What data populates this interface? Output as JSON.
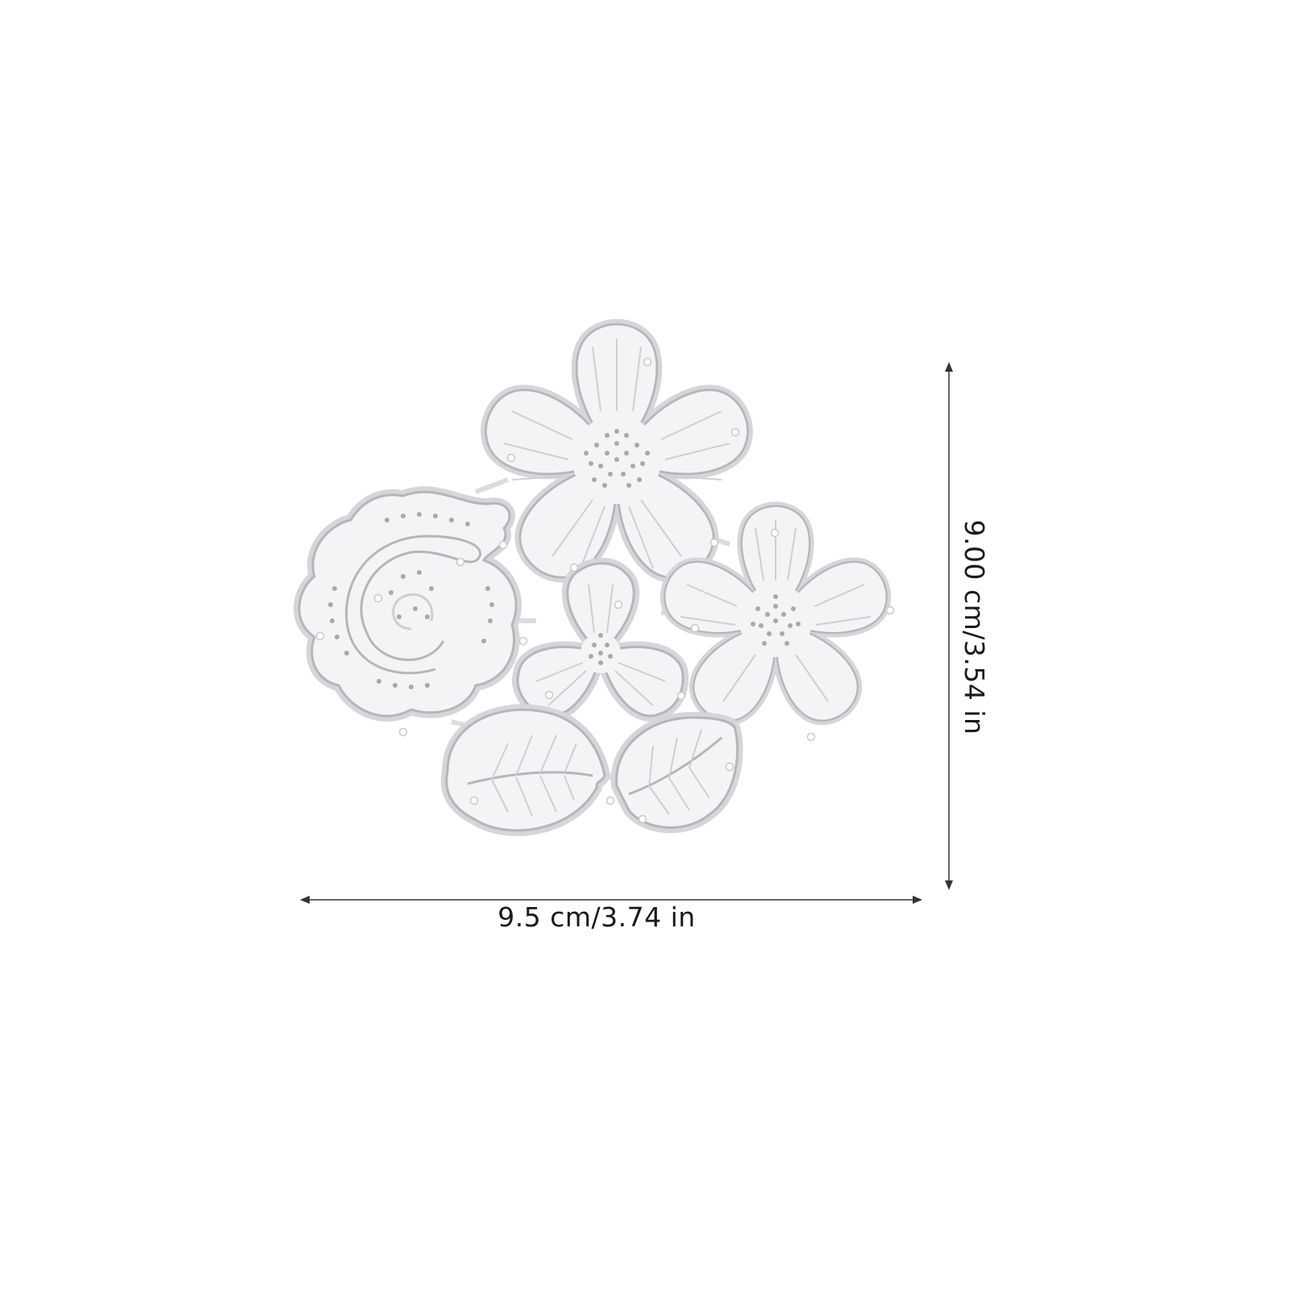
{
  "product": {
    "description_items": [
      "flower-die-spiral-rose",
      "flower-die-five-petal-large",
      "flower-die-three-petal",
      "flower-die-five-petal-right",
      "leaf-die-left",
      "leaf-die-right"
    ]
  },
  "dimensions": {
    "width_label": "9.5 cm/3.74 in",
    "height_label": "9.00 cm/3.54 in"
  },
  "colors": {
    "background": "#ffffff",
    "die_fill": "#f4f4f6",
    "die_outline": "#b9b9bd",
    "die_edge": "#d9d9dd",
    "emboss_line": "#c9c9cd",
    "dot": "#a8a8ad",
    "dimension_line": "#333333"
  }
}
